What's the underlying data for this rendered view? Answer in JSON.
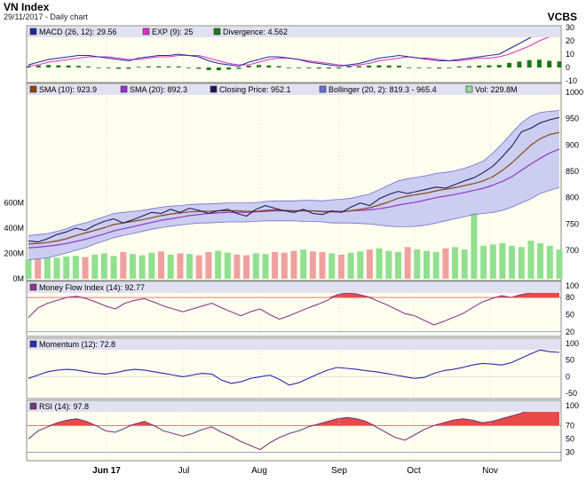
{
  "header": {
    "title": "VN Index",
    "subtitle": "29/11/2017 - Daily chart",
    "source": "VCBS"
  },
  "colors": {
    "panel_bg": "#fffff0",
    "legend_bg": "#e1e1f2",
    "frame": "#888888",
    "macd": "#1f2a9e",
    "signal": "#e030c8",
    "divergence": "#1a7a1a",
    "sma10": "#8b4513",
    "sma20": "#9932cc",
    "price": "#1a1a5a",
    "bollinger_fill": "#b9bdf0",
    "bollinger_line": "#6f6fcf",
    "volume_up": "#90e090",
    "volume_down": "#f0a0a0",
    "mfi": "#8b3a8b",
    "momentum": "#2a2ab0",
    "rsi": "#7a3a7a",
    "overbought_fill": "#e84a4a",
    "level_line": "#e05050"
  },
  "legends": {
    "macd": {
      "macd": "MACD (26, 12): 29.56",
      "exp": "EXP (9): 25",
      "div": "Divergence: 4.562"
    },
    "price": {
      "sma10": "SMA (10): 923.9",
      "sma20": "SMA (20): 892.3",
      "close": "Closing Price: 952.1",
      "boll": "Bollinger (20, 2): 819.3 - 965.4",
      "vol": "Vol: 229.8M"
    },
    "mfi": "Money Flow Index (14): 92.77",
    "mom": "Momentum (12): 72.8",
    "rsi": "RSI (14): 97.8"
  },
  "axes": {
    "macd_ticks": [
      "30",
      "20",
      "10",
      "0",
      "-10"
    ],
    "price_ticks": [
      "1000",
      "950",
      "900",
      "850",
      "800",
      "750",
      "700"
    ],
    "volume_ticks": [
      "600M",
      "400M",
      "200M",
      "0M"
    ],
    "mfi_ticks": [
      "100",
      "80",
      "50",
      "20"
    ],
    "mom_ticks": [
      "100",
      "50",
      "0",
      "-50"
    ],
    "rsi_ticks": [
      "100",
      "70",
      "50",
      "30"
    ],
    "months": [
      "Jun 17",
      "Jul",
      "Aug",
      "Sep",
      "Oct",
      "Nov"
    ]
  },
  "chart_data": {
    "type": "line",
    "title": "VN Index",
    "x_range": [
      "2017-05-09",
      "2017-11-29"
    ],
    "panels": [
      {
        "name": "MACD",
        "ylim": [
          -10,
          30
        ],
        "series": [
          {
            "name": "MACD (26, 12)",
            "values": [
              2,
              4,
              6,
              7,
              8,
              9,
              9,
              8,
              7,
              6,
              5,
              7,
              8,
              9,
              9,
              10,
              9,
              8,
              5,
              3,
              2,
              1,
              4,
              6,
              8,
              8,
              7,
              6,
              4,
              3,
              2,
              1,
              2,
              3,
              5,
              7,
              8,
              9,
              8,
              7,
              6,
              5,
              5,
              6,
              7,
              8,
              9,
              10,
              14,
              18,
              22,
              26,
              28,
              29.56
            ]
          },
          {
            "name": "EXP (9)",
            "values": [
              1,
              2,
              4,
              5,
              6,
              7,
              8,
              8,
              8,
              7,
              6,
              6,
              7,
              8,
              8,
              9,
              9,
              9,
              7,
              5,
              3,
              2,
              2,
              4,
              6,
              7,
              7,
              6,
              5,
              4,
              3,
              2,
              1,
              2,
              3,
              5,
              6,
              7,
              8,
              7,
              7,
              6,
              5,
              5,
              6,
              7,
              7,
              8,
              10,
              13,
              16,
              20,
              23,
              25
            ]
          },
          {
            "name": "Divergence",
            "values": [
              1,
              1.5,
              1.8,
              1.6,
              1.5,
              1.2,
              0.8,
              0,
              -0.6,
              -1,
              -1,
              0.5,
              0.8,
              0.9,
              0.8,
              0.8,
              0,
              -1,
              -2,
              -2.1,
              -1.5,
              -1,
              1.3,
              1.9,
              1.5,
              1,
              0,
              0,
              -0.7,
              -0.8,
              -0.8,
              -0.8,
              0.8,
              1,
              1.5,
              1.6,
              1.5,
              1.3,
              0,
              0,
              -0.5,
              -0.8,
              0,
              0.8,
              1,
              1.3,
              1.7,
              1.9,
              3.5,
              4.5,
              5.5,
              5.8,
              5.0,
              4.562
            ]
          }
        ]
      },
      {
        "name": "Price",
        "ylim": [
          690,
          1000
        ],
        "series": [
          {
            "name": "Closing Price",
            "values": [
              718,
              716,
              722,
              730,
              735,
              742,
              738,
              748,
              755,
              760,
              752,
              758,
              765,
              772,
              770,
              778,
              772,
              780,
              776,
              770,
              775,
              778,
              770,
              765,
              778,
              785,
              780,
              775,
              772,
              778,
              770,
              768,
              775,
              772,
              782,
              790,
              785,
              798,
              806,
              812,
              808,
              812,
              816,
              820,
              818,
              825,
              832,
              838,
              848,
              860,
              878,
              898,
              925,
              932,
              942,
              948,
              952.1
            ]
          },
          {
            "name": "SMA (10)",
            "values": [
              712,
              713,
              715,
              718,
              722,
              728,
              733,
              738,
              743,
              749,
              752,
              755,
              758,
              762,
              766,
              769,
              771,
              773,
              774,
              774,
              775,
              775,
              775,
              774,
              774,
              776,
              777,
              776,
              775,
              775,
              775,
              773,
              773,
              773,
              775,
              778,
              781,
              786,
              792,
              799,
              803,
              806,
              809,
              813,
              816,
              819,
              823,
              827,
              832,
              840,
              852,
              866,
              883,
              900,
              912,
              920,
              923.9
            ]
          },
          {
            "name": "SMA (20)",
            "values": [
              705,
              706,
              708,
              710,
              713,
              717,
              721,
              726,
              731,
              737,
              741,
              745,
              749,
              753,
              757,
              760,
              763,
              766,
              768,
              770,
              771,
              772,
              772,
              772,
              773,
              774,
              775,
              775,
              775,
              775,
              775,
              774,
              774,
              774,
              775,
              776,
              777,
              779,
              782,
              786,
              789,
              792,
              796,
              800,
              803,
              806,
              810,
              814,
              818,
              824,
              831,
              840,
              852,
              864,
              875,
              885,
              892.3
            ]
          },
          {
            "name": "Bollinger upper",
            "values": [
              728,
              730,
              732,
              736,
              741,
              748,
              752,
              758,
              764,
              770,
              772,
              774,
              776,
              779,
              782,
              784,
              785,
              787,
              788,
              788,
              789,
              790,
              790,
              790,
              791,
              793,
              794,
              794,
              794,
              795,
              795,
              794,
              796,
              797,
              799,
              803,
              807,
              815,
              824,
              832,
              836,
              839,
              842,
              846,
              848,
              851,
              856,
              862,
              870,
              885,
              903,
              923,
              942,
              955,
              962,
              964,
              965.4
            ]
          },
          {
            "name": "Bollinger lower",
            "values": [
              682,
              684,
              686,
              690,
              695,
              700,
              705,
              712,
              718,
              724,
              728,
              732,
              736,
              740,
              743,
              746,
              748,
              750,
              752,
              752,
              753,
              754,
              754,
              754,
              755,
              756,
              756,
              756,
              756,
              755,
              755,
              754,
              752,
              752,
              752,
              751,
              750,
              748,
              746,
              745,
              745,
              746,
              748,
              752,
              756,
              760,
              764,
              768,
              770,
              772,
              776,
              782,
              790,
              798,
              808,
              814,
              819.3
            ]
          },
          {
            "name": "Volume (M)",
            "values": [
              150,
              160,
              170,
              165,
              175,
              180,
              170,
              190,
              200,
              180,
              210,
              195,
              185,
              205,
              215,
              190,
              200,
              195,
              185,
              210,
              220,
              205,
              190,
              185,
              200,
              195,
              210,
              205,
              220,
              230,
              215,
              210,
              200,
              190,
              205,
              215,
              230,
              240,
              220,
              210,
              250,
              230,
              220,
              210,
              240,
              250,
              230,
              520,
              260,
              270,
              280,
              260,
              250,
              300,
              280,
              260,
              229.8
            ]
          }
        ]
      },
      {
        "name": "Money Flow Index (14)",
        "ylim": [
          15,
          105
        ],
        "series": [
          {
            "name": "MFI",
            "values": [
              45,
              62,
              70,
              75,
              80,
              82,
              78,
              72,
              65,
              60,
              70,
              75,
              78,
              72,
              65,
              60,
              55,
              60,
              65,
              70,
              62,
              55,
              48,
              55,
              60,
              50,
              42,
              48,
              55,
              62,
              68,
              75,
              85,
              88,
              86,
              82,
              75,
              68,
              60,
              52,
              48,
              40,
              32,
              38,
              45,
              52,
              62,
              72,
              78,
              83,
              80,
              85,
              88,
              93,
              95,
              92.77
            ]
          }
        ]
      },
      {
        "name": "Momentum (12)",
        "ylim": [
          -60,
          110
        ],
        "series": [
          {
            "name": "Momentum",
            "values": [
              -5,
              5,
              15,
              20,
              22,
              20,
              15,
              10,
              8,
              12,
              18,
              22,
              20,
              15,
              10,
              5,
              0,
              5,
              10,
              8,
              -10,
              -20,
              -15,
              -5,
              0,
              5,
              -8,
              -25,
              -18,
              -5,
              8,
              20,
              28,
              25,
              22,
              18,
              15,
              10,
              5,
              0,
              -5,
              -2,
              10,
              18,
              22,
              28,
              35,
              40,
              38,
              35,
              42,
              55,
              68,
              80,
              75,
              72.8
            ]
          }
        ]
      },
      {
        "name": "RSI (14)",
        "ylim": [
          20,
          105
        ],
        "series": [
          {
            "name": "RSI",
            "values": [
              50,
              62,
              68,
              74,
              78,
              80,
              76,
              70,
              62,
              60,
              66,
              72,
              76,
              70,
              62,
              58,
              54,
              58,
              64,
              68,
              60,
              54,
              46,
              40,
              34,
              44,
              52,
              58,
              62,
              68,
              72,
              76,
              80,
              82,
              80,
              76,
              68,
              60,
              52,
              48,
              56,
              64,
              70,
              74,
              78,
              80,
              78,
              74,
              76,
              80,
              84,
              88,
              94,
              98,
              98,
              97.8
            ]
          }
        ]
      }
    ],
    "reference_levels": {
      "mfi": [
        80,
        20
      ],
      "rsi": [
        70,
        30
      ]
    }
  }
}
